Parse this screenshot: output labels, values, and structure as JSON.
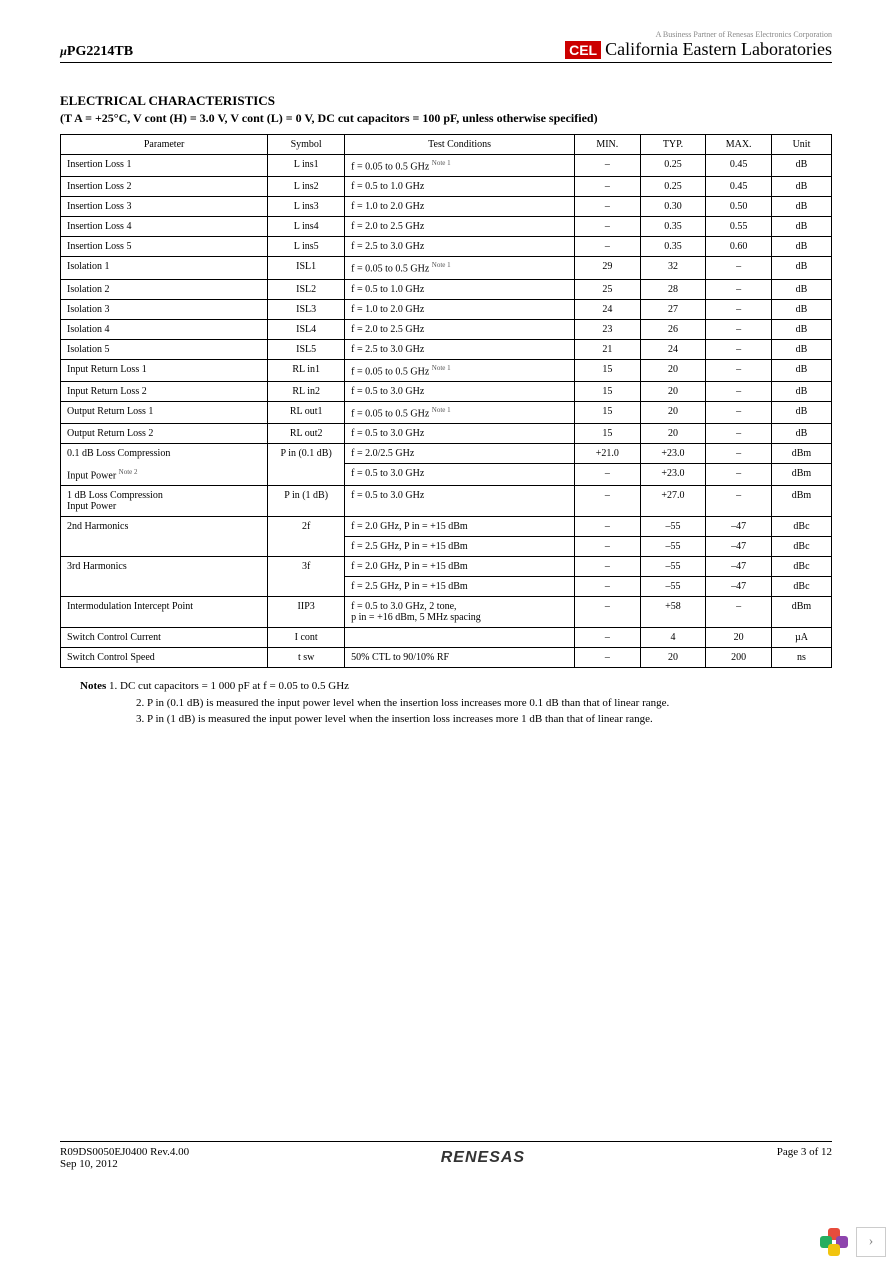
{
  "header": {
    "part_number_prefix": "µ",
    "part_number": "PG2214TB",
    "tagline": "A Business Partner of Renesas Electronics Corporation",
    "logo_text": "CEL",
    "company": "California Eastern Laboratories"
  },
  "section": {
    "title": "ELECTRICAL  CHARACTERISTICS",
    "conditions": "(T A = +25°C, V cont (H) = 3.0 V, V cont (L) = 0 V, DC cut capacitors = 100 pF, unless otherwise specified)"
  },
  "table": {
    "headers": [
      "Parameter",
      "Symbol",
      "Test Conditions",
      "MIN.",
      "TYP.",
      "MAX.",
      "Unit"
    ],
    "rows": [
      {
        "param": "Insertion Loss 1",
        "symbol": "L ins1",
        "cond": "f = 0.05 to 0.5 GHz",
        "note": "Note 1",
        "min": "–",
        "typ": "0.25",
        "max": "0.45",
        "unit": "dB"
      },
      {
        "param": "Insertion Loss 2",
        "symbol": "L ins2",
        "cond": "f = 0.5 to 1.0 GHz",
        "min": "–",
        "typ": "0.25",
        "max": "0.45",
        "unit": "dB"
      },
      {
        "param": "Insertion Loss 3",
        "symbol": "L ins3",
        "cond": "f = 1.0 to 2.0 GHz",
        "min": "–",
        "typ": "0.30",
        "max": "0.50",
        "unit": "dB"
      },
      {
        "param": "Insertion Loss 4",
        "symbol": "L ins4",
        "cond": "f = 2.0 to 2.5 GHz",
        "min": "–",
        "typ": "0.35",
        "max": "0.55",
        "unit": "dB"
      },
      {
        "param": "Insertion Loss 5",
        "symbol": "L ins5",
        "cond": "f = 2.5 to 3.0 GHz",
        "min": "–",
        "typ": "0.35",
        "max": "0.60",
        "unit": "dB"
      },
      {
        "param": "Isolation 1",
        "symbol": "ISL1",
        "cond": "f = 0.05 to 0.5 GHz",
        "note": "Note 1",
        "min": "29",
        "typ": "32",
        "max": "–",
        "unit": "dB"
      },
      {
        "param": "Isolation 2",
        "symbol": "ISL2",
        "cond": "f = 0.5 to 1.0 GHz",
        "min": "25",
        "typ": "28",
        "max": "–",
        "unit": "dB"
      },
      {
        "param": "Isolation 3",
        "symbol": "ISL3",
        "cond": "f = 1.0 to 2.0 GHz",
        "min": "24",
        "typ": "27",
        "max": "–",
        "unit": "dB"
      },
      {
        "param": "Isolation 4",
        "symbol": "ISL4",
        "cond": "f = 2.0 to 2.5 GHz",
        "min": "23",
        "typ": "26",
        "max": "–",
        "unit": "dB"
      },
      {
        "param": "Isolation 5",
        "symbol": "ISL5",
        "cond": "f = 2.5 to 3.0 GHz",
        "min": "21",
        "typ": "24",
        "max": "–",
        "unit": "dB"
      },
      {
        "param": "Input Return Loss 1",
        "symbol": "RL in1",
        "cond": "f = 0.05 to 0.5 GHz",
        "note": "Note 1",
        "min": "15",
        "typ": "20",
        "max": "–",
        "unit": "dB"
      },
      {
        "param": "Input Return Loss 2",
        "symbol": "RL in2",
        "cond": "f = 0.5 to 3.0 GHz",
        "min": "15",
        "typ": "20",
        "max": "–",
        "unit": "dB"
      },
      {
        "param": "Output Return Loss 1",
        "symbol": "RL out1",
        "cond": "f = 0.05 to 0.5 GHz",
        "note": "Note 1",
        "min": "15",
        "typ": "20",
        "max": "–",
        "unit": "dB"
      },
      {
        "param": "Output Return Loss 2",
        "symbol": "RL out2",
        "cond": "f = 0.5 to 3.0 GHz",
        "min": "15",
        "typ": "20",
        "max": "–",
        "unit": "dB"
      }
    ],
    "compression01": {
      "param": "0.1 dB Loss Compression",
      "param2": "Input Power",
      "note": "Note 2",
      "symbol": "P in (0.1 dB)",
      "rows": [
        {
          "cond": "f = 2.0/2.5 GHz",
          "min": "+21.0",
          "typ": "+23.0",
          "max": "–",
          "unit": "dBm"
        },
        {
          "cond": "f = 0.5 to 3.0 GHz",
          "min": "–",
          "typ": "+23.0",
          "max": "–",
          "unit": "dBm"
        }
      ]
    },
    "compression1": {
      "param": "1 dB Loss Compression",
      "param2": "Input Power",
      "symbol": "P in (1 dB)",
      "cond": "f = 0.5 to 3.0 GHz",
      "min": "–",
      "typ": "+27.0",
      "max": "–",
      "unit": "dBm"
    },
    "harm2": {
      "param": "2nd Harmonics",
      "symbol": "2f",
      "rows": [
        {
          "cond": "f = 2.0 GHz, P in = +15 dBm",
          "min": "–",
          "typ": "–55",
          "max": "–47",
          "unit": "dBc"
        },
        {
          "cond": "f = 2.5 GHz, P in = +15 dBm",
          "min": "–",
          "typ": "–55",
          "max": "–47",
          "unit": "dBc"
        }
      ]
    },
    "harm3": {
      "param": "3rd Harmonics",
      "symbol": "3f",
      "rows": [
        {
          "cond": "f = 2.0 GHz, P in = +15 dBm",
          "min": "–",
          "typ": "–55",
          "max": "–47",
          "unit": "dBc"
        },
        {
          "cond": "f = 2.5 GHz, P in = +15 dBm",
          "min": "–",
          "typ": "–55",
          "max": "–47",
          "unit": "dBc"
        }
      ]
    },
    "iip": {
      "param": "Intermodulation Intercept Point",
      "symbol": "IIP3",
      "cond": "f = 0.5 to 3.0 GHz, 2 tone,",
      "cond2": "p in = +16 dBm, 5 MHz spacing",
      "min": "–",
      "typ": "+58",
      "max": "–",
      "unit": "dBm"
    },
    "swcc": {
      "param": "Switch Control Current",
      "symbol": "I cont",
      "cond": "",
      "min": "–",
      "typ": "4",
      "max": "20",
      "unit": "µA"
    },
    "swcs": {
      "param": "Switch Control Speed",
      "symbol": "t sw",
      "cond": "50% CTL to 90/10% RF",
      "min": "–",
      "typ": "20",
      "max": "200",
      "unit": "ns"
    }
  },
  "notes": {
    "label": "Notes",
    "n1": "1.  DC cut capacitors = 1 000 pF at f = 0.05 to 0.5 GHz",
    "n2": "2.  P in (0.1 dB) is measured the input power level when the insertion loss increases more 0.1 dB than that of linear range.",
    "n3": "3.  P in (1 dB) is measured the input power level when the insertion loss increases more 1 dB than that of linear range."
  },
  "footer": {
    "doc": "R09DS0050EJ0400   Rev.4.00",
    "date": "Sep 10, 2012",
    "brand": "RENESAS",
    "page": "Page 3 of 12"
  }
}
